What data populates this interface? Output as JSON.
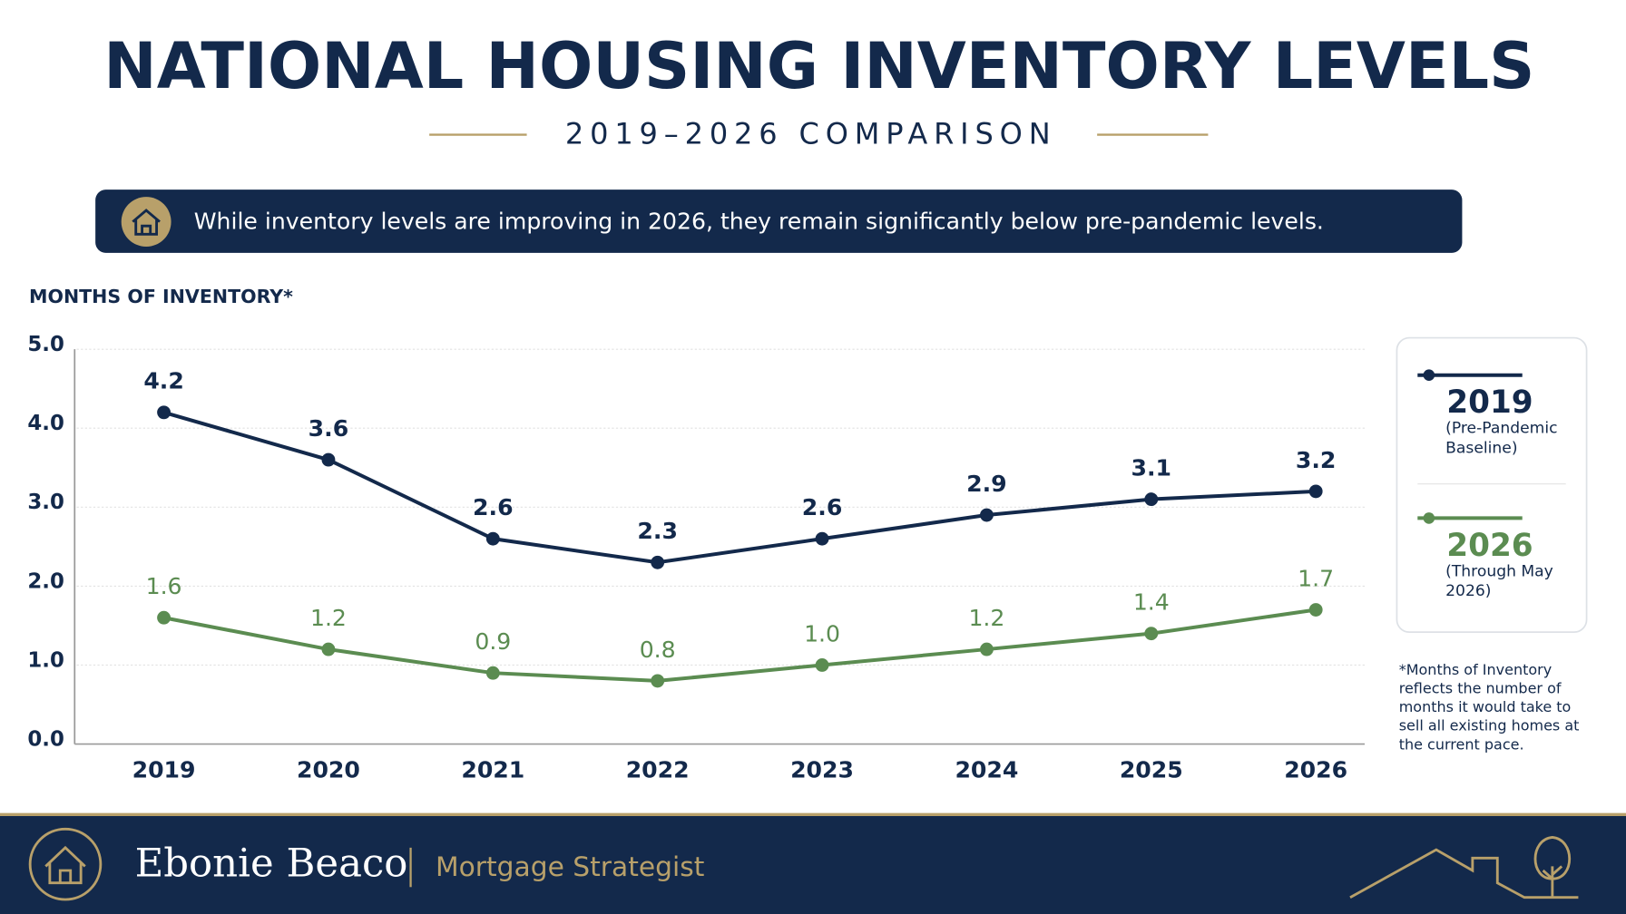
{
  "chart_data": {
    "type": "line",
    "title": "NATIONAL HOUSING INVENTORY LEVELS",
    "subtitle": "2019–2026 COMPARISON",
    "callout": "While inventory levels are improving in 2026, they remain significantly below pre-pandemic levels.",
    "y_label": "MONTHS OF INVENTORY*",
    "categories": [
      "2019",
      "2020",
      "2021",
      "2022",
      "2023",
      "2024",
      "2025",
      "2026"
    ],
    "series": [
      {
        "name": "2019",
        "description": "(Pre-Pandemic Baseline)",
        "color": "#13294b",
        "values": [
          4.2,
          3.6,
          2.6,
          2.3,
          2.6,
          2.9,
          3.1,
          3.2
        ],
        "value_labels": [
          "4.2",
          "3.6",
          "2.6",
          "2.3",
          "2.6",
          "2.9",
          "3.1",
          "3.2"
        ]
      },
      {
        "name": "2026",
        "description": "(Through May 2026)",
        "color": "#5b8c51",
        "values": [
          1.6,
          1.2,
          0.9,
          0.8,
          1.0,
          1.2,
          1.4,
          1.7
        ],
        "value_labels": [
          "1.6",
          "1.2",
          "0.9",
          "0.8",
          "1.0",
          "1.2",
          "1.4",
          "1.7"
        ]
      }
    ],
    "ylim": [
      0,
      5
    ],
    "yticks": [
      {
        "value": 0,
        "label": "0.0"
      },
      {
        "value": 1,
        "label": "1.0"
      },
      {
        "value": 2,
        "label": "2.0"
      },
      {
        "value": 3,
        "label": "3.0"
      },
      {
        "value": 4,
        "label": "4.0"
      },
      {
        "value": 5,
        "label": "5.0"
      }
    ],
    "grid": true,
    "legend": "right",
    "footnote": "*Months of Inventory reflects the number of months it would take to sell all existing homes at the current pace."
  },
  "footer": {
    "name": "Ebonie Beaco",
    "role": "Mortgage Strategist"
  }
}
